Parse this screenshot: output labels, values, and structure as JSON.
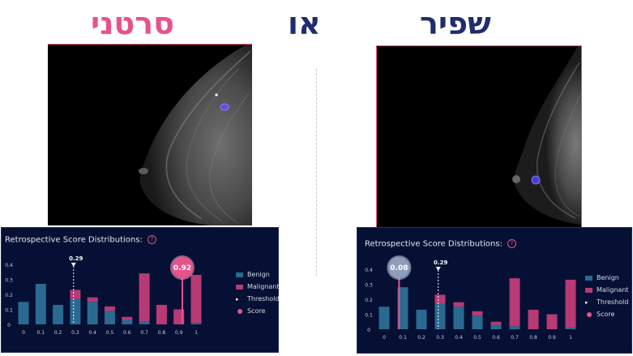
{
  "headings": {
    "left": "סרטני",
    "middle": "או",
    "right": "שפיר"
  },
  "colors": {
    "pink": "#e8528a",
    "navy": "#1f2d6e",
    "benign": "#2a6a90",
    "malignant": "#b83a75",
    "panel_bg": "#051034"
  },
  "panels": [
    {
      "id": "left",
      "title": "Retrospective Score Distributions:",
      "help_icon": "question-circle-icon",
      "legend": [
        {
          "label": "Benign",
          "icon": "benign-swatch"
        },
        {
          "label": "Malignant",
          "icon": "malignant-swatch"
        },
        {
          "label": "Threshold",
          "icon": "threshold-arrow-icon"
        },
        {
          "label": "Score",
          "icon": "score-dot-icon"
        }
      ],
      "chart_data": {
        "type": "bar",
        "stacked": true,
        "categories": [
          "0",
          "0.1",
          "0.2",
          "0.3",
          "0.4",
          "0.5",
          "0.6",
          "0.7",
          "0.8",
          "0.9",
          "1"
        ],
        "series": [
          {
            "name": "Benign",
            "values": [
              0.15,
              0.27,
              0.13,
              0.17,
              0.15,
              0.09,
              0.03,
              0.02,
              0.0,
              0.0,
              0.01
            ]
          },
          {
            "name": "Malignant",
            "values": [
              0.0,
              0.0,
              0.0,
              0.06,
              0.03,
              0.03,
              0.02,
              0.32,
              0.13,
              0.1,
              0.32
            ]
          }
        ],
        "yticks": [
          "0",
          "0.1",
          "0.2",
          "0.3",
          "0.4"
        ],
        "ylim": [
          0,
          0.4
        ],
        "threshold": 0.29,
        "threshold_label": "0.29",
        "score": 0.92,
        "score_label": "0.92"
      }
    },
    {
      "id": "right",
      "title": "Retrospective Score Distributions:",
      "help_icon": "question-circle-icon",
      "legend": [
        {
          "label": "Benign",
          "icon": "benign-swatch"
        },
        {
          "label": "Malignant",
          "icon": "malignant-swatch"
        },
        {
          "label": "Threshold",
          "icon": "threshold-arrow-icon"
        },
        {
          "label": "Score",
          "icon": "score-dot-icon"
        }
      ],
      "chart_data": {
        "type": "bar",
        "stacked": true,
        "categories": [
          "0",
          "0.1",
          "0.2",
          "0.3",
          "0.4",
          "0.5",
          "0.6",
          "0.7",
          "0.8",
          "0.9",
          "1"
        ],
        "series": [
          {
            "name": "Benign",
            "values": [
              0.15,
              0.28,
              0.13,
              0.17,
              0.15,
              0.09,
              0.03,
              0.02,
              0.0,
              0.0,
              0.01
            ]
          },
          {
            "name": "Malignant",
            "values": [
              0.0,
              0.0,
              0.0,
              0.06,
              0.03,
              0.03,
              0.02,
              0.32,
              0.13,
              0.1,
              0.32
            ]
          }
        ],
        "yticks": [
          "0",
          "0.1",
          "0.2",
          "0.3",
          "0.4"
        ],
        "ylim": [
          0,
          0.4
        ],
        "threshold": 0.29,
        "threshold_label": "0.29",
        "score": 0.08,
        "score_label": "0.08"
      }
    }
  ]
}
